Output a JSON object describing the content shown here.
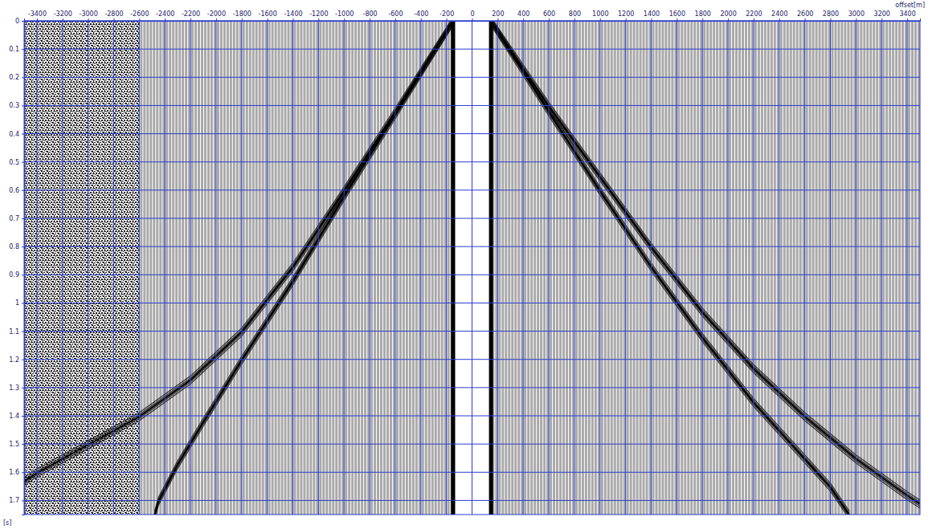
{
  "chart_data": {
    "type": "seismic_gather",
    "x_label": "offset[m]",
    "y_label": "[s]",
    "xlim": [
      -3500,
      3500
    ],
    "ylim": [
      0,
      1.75
    ],
    "xticks": [
      -3400,
      -3200,
      -3000,
      -2800,
      -2600,
      -2400,
      -2200,
      -2000,
      -1800,
      -1600,
      -1400,
      -1200,
      -1000,
      -800,
      -600,
      -400,
      -200,
      0,
      200,
      400,
      600,
      800,
      1000,
      1200,
      1400,
      1600,
      1800,
      2000,
      2200,
      2400,
      2600,
      2800,
      3000,
      3200,
      3400
    ],
    "yticks": [
      0,
      0.1,
      0.2,
      0.3,
      0.4,
      0.5,
      0.6,
      0.7,
      0.8,
      0.9,
      1,
      1.1,
      1.2,
      1.3,
      1.4,
      1.5,
      1.6,
      1.7
    ],
    "grid": true,
    "trace_interval": 25,
    "gap_offsets": [
      -130,
      130
    ],
    "noise_offsets": [
      -3500,
      -2600
    ],
    "series": [
      {
        "x": [
          -150,
          -600,
          -1000,
          -1400,
          -1800,
          -2200,
          -2600,
          -3000,
          -3400,
          -3500
        ],
        "values": [
          0,
          0.32,
          0.6,
          0.87,
          1.1,
          1.27,
          1.4,
          1.5,
          1.6,
          1.63
        ]
      },
      {
        "x": [
          -150,
          -600,
          -1000,
          -1400,
          -1800,
          -2100,
          -2300,
          -2450,
          -2480
        ],
        "values": [
          0,
          0.33,
          0.62,
          0.92,
          1.2,
          1.42,
          1.57,
          1.7,
          1.75
        ]
      },
      {
        "x": [
          150,
          600,
          1000,
          1400,
          1800,
          2200,
          2600,
          3000,
          3400,
          3500
        ],
        "values": [
          0,
          0.3,
          0.55,
          0.8,
          1.03,
          1.23,
          1.4,
          1.55,
          1.68,
          1.71
        ]
      },
      {
        "x": [
          150,
          600,
          1000,
          1400,
          1800,
          2200,
          2600,
          2800,
          2950
        ],
        "values": [
          0,
          0.32,
          0.6,
          0.87,
          1.12,
          1.35,
          1.55,
          1.65,
          1.75
        ]
      }
    ]
  }
}
